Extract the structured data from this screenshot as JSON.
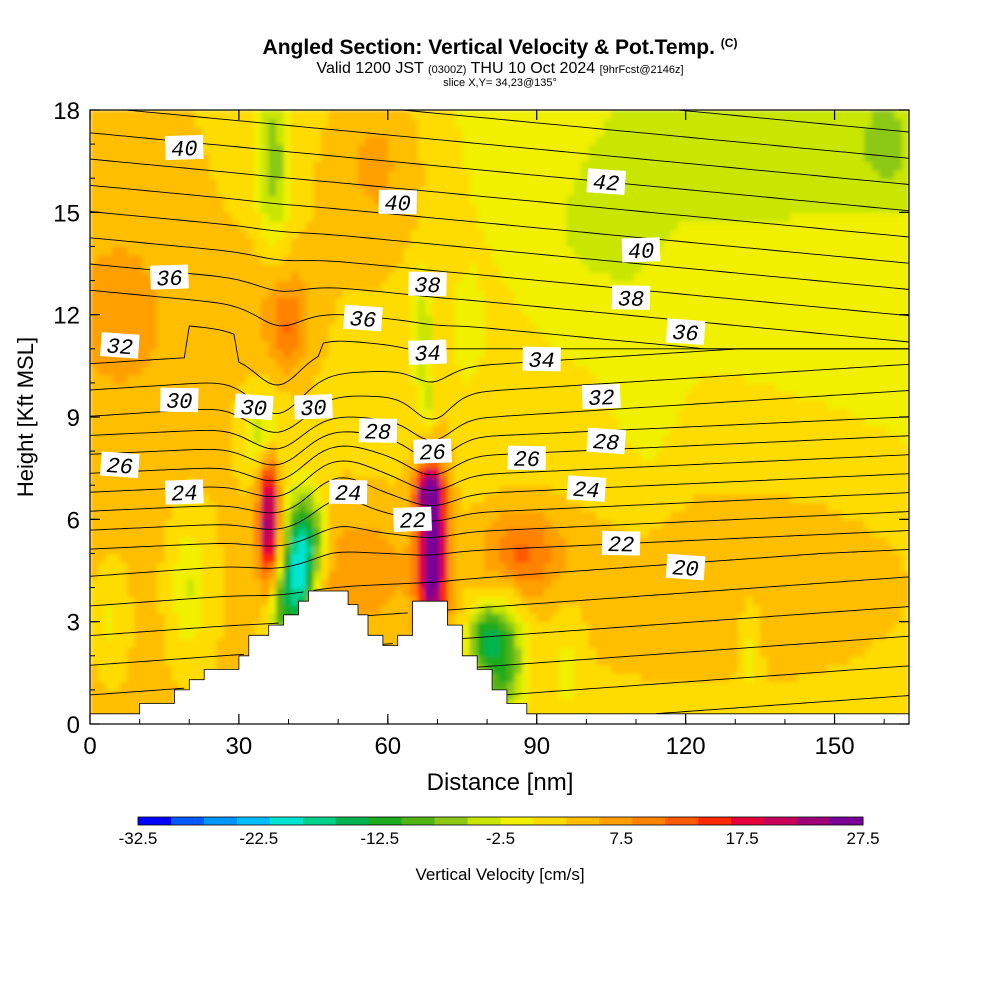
{
  "title": {
    "main": "Angled Section: Vertical Velocity & Pot.Temp.",
    "copyright": "(C)",
    "valid_prefix": "Valid 1200 JST",
    "utc": "(0300Z)",
    "valid_date": "THU 10 Oct 2024",
    "forecast": "[9hrFcst@2146z]",
    "slice": "slice X,Y= 34,23@135°"
  },
  "chart_data": {
    "type": "heatmap",
    "xlabel": "Distance [nm]",
    "ylabel": "Height [Kft MSL]",
    "xlim": [
      0,
      165
    ],
    "ylim": [
      0,
      18
    ],
    "x_ticks": [
      "0",
      "30",
      "60",
      "90",
      "120",
      "150"
    ],
    "x_tick_values": [
      0,
      30,
      60,
      90,
      120,
      150
    ],
    "y_ticks": [
      "0",
      "3",
      "6",
      "9",
      "12",
      "15",
      "18"
    ],
    "y_tick_values": [
      0,
      3,
      6,
      9,
      12,
      15,
      18
    ],
    "colorbar": {
      "label": "Vertical Velocity [cm/s]",
      "tick_labels": [
        "-32.5",
        "-22.5",
        "-12.5",
        "-2.5",
        "7.5",
        "17.5",
        "27.5"
      ],
      "tick_values": [
        -32.5,
        -22.5,
        -12.5,
        -2.5,
        7.5,
        17.5,
        27.5
      ],
      "colors": [
        "#0000ff",
        "#005aff",
        "#0096ff",
        "#00beff",
        "#00e6d2",
        "#00d28c",
        "#00b450",
        "#1eaa1e",
        "#50b414",
        "#8cc814",
        "#c8e600",
        "#f0f000",
        "#ffdc00",
        "#ffbe00",
        "#ffa000",
        "#ff8200",
        "#ff5a00",
        "#ff2800",
        "#e6003c",
        "#c8005a",
        "#a00078",
        "#780096"
      ]
    },
    "terrain_nm_kft": [
      [
        0,
        0.3
      ],
      [
        10,
        0.3
      ],
      [
        10,
        0.6
      ],
      [
        17,
        0.6
      ],
      [
        17,
        1.0
      ],
      [
        20,
        1.0
      ],
      [
        20,
        1.3
      ],
      [
        23,
        1.3
      ],
      [
        23,
        1.6
      ],
      [
        30,
        1.6
      ],
      [
        30,
        2.0
      ],
      [
        32,
        2.0
      ],
      [
        32,
        2.6
      ],
      [
        36,
        2.6
      ],
      [
        36,
        2.9
      ],
      [
        39,
        2.9
      ],
      [
        39,
        3.2
      ],
      [
        42,
        3.2
      ],
      [
        42,
        3.6
      ],
      [
        44,
        3.6
      ],
      [
        44,
        3.9
      ],
      [
        52,
        3.9
      ],
      [
        52,
        3.5
      ],
      [
        54,
        3.5
      ],
      [
        54,
        3.2
      ],
      [
        56,
        3.2
      ],
      [
        56,
        2.6
      ],
      [
        59,
        2.6
      ],
      [
        59,
        2.3
      ],
      [
        62,
        2.3
      ],
      [
        62,
        2.6
      ],
      [
        65,
        2.6
      ],
      [
        65,
        3.6
      ],
      [
        72,
        3.6
      ],
      [
        72,
        2.9
      ],
      [
        75,
        2.9
      ],
      [
        75,
        2.0
      ],
      [
        78,
        2.0
      ],
      [
        78,
        1.6
      ],
      [
        81,
        1.6
      ],
      [
        81,
        1.0
      ],
      [
        84,
        1.0
      ],
      [
        84,
        0.6
      ],
      [
        88,
        0.6
      ],
      [
        88,
        0.3
      ],
      [
        165,
        0.3
      ]
    ],
    "velocity_cells": [
      {
        "x": 36,
        "z": 6.0,
        "sx": 1.4,
        "sz": 1.4,
        "v": 22
      },
      {
        "x": 35,
        "z": 8.5,
        "sx": 2.5,
        "sz": 0.8,
        "v": -8
      },
      {
        "x": 42,
        "z": 4.5,
        "sx": 2.2,
        "sz": 1.4,
        "v": -24
      },
      {
        "x": 38,
        "z": 3.5,
        "sx": 2.0,
        "sz": 0.8,
        "v": -10
      },
      {
        "x": 45,
        "z": 5.5,
        "sx": 2.0,
        "sz": 0.9,
        "v": -10
      },
      {
        "x": 69,
        "z": 5.0,
        "sx": 2.0,
        "sz": 1.7,
        "v": 28
      },
      {
        "x": 68,
        "z": 6.8,
        "sx": 2.0,
        "sz": 0.5,
        "v": 14
      },
      {
        "x": 67,
        "z": 11.5,
        "sx": 1.5,
        "sz": 1.2,
        "v": -7
      },
      {
        "x": 68,
        "z": 9.3,
        "sx": 1.2,
        "sz": 0.6,
        "v": -5
      },
      {
        "x": 83,
        "z": 2.0,
        "sx": 3.0,
        "sz": 1.2,
        "v": -15
      },
      {
        "x": 79,
        "z": 2.6,
        "sx": 2.0,
        "sz": 0.6,
        "v": -11
      },
      {
        "x": 87,
        "z": 5.0,
        "sx": 5.5,
        "sz": 0.9,
        "v": 9
      },
      {
        "x": 20,
        "z": 4.0,
        "sx": 2.8,
        "sz": 1.4,
        "v": -6
      },
      {
        "x": 4,
        "z": 3.0,
        "sx": 2.5,
        "sz": 1.2,
        "v": -4
      },
      {
        "x": 96,
        "z": 1.8,
        "sx": 2.5,
        "sz": 1.2,
        "v": -3
      },
      {
        "x": 133,
        "z": 2.3,
        "sx": 1.6,
        "sz": 1.3,
        "v": -4
      },
      {
        "x": 54,
        "z": 4.5,
        "sx": 9,
        "sz": 1.3,
        "v": 5
      },
      {
        "x": 58,
        "z": 16.5,
        "sx": 7,
        "sz": 2.0,
        "v": 5
      },
      {
        "x": 37,
        "z": 16.5,
        "sx": 2.4,
        "sz": 2.0,
        "v": -9
      },
      {
        "x": 38,
        "z": 12.5,
        "sx": 5,
        "sz": 1.2,
        "v": 4
      },
      {
        "x": 40,
        "z": 11.5,
        "sx": 2.5,
        "sz": 0.8,
        "v": 6
      },
      {
        "x": 7,
        "z": 12,
        "sx": 8,
        "sz": 2.0,
        "v": 3
      },
      {
        "x": 120,
        "z": 16,
        "sx": 28,
        "sz": 3,
        "v": -2
      },
      {
        "x": 160,
        "z": 17,
        "sx": 3,
        "sz": 0.8,
        "v": -5
      },
      {
        "x": 140,
        "z": 4,
        "sx": 35,
        "sz": 2.8,
        "v": 5
      },
      {
        "x": 76,
        "z": 11.5,
        "sx": 2,
        "sz": 1.0,
        "v": -4
      },
      {
        "x": 112,
        "z": 9,
        "sx": 5,
        "sz": 2.5,
        "v": -2
      },
      {
        "x": 100,
        "z": 13.5,
        "sx": 10,
        "sz": 2,
        "v": -2
      }
    ],
    "isentrope_levels": [
      20,
      22,
      24,
      26,
      28,
      30,
      32,
      34,
      36,
      38,
      40,
      42
    ],
    "isentrope_labels": [
      {
        "text": "40",
        "x": 19,
        "z": 16.9
      },
      {
        "text": "40",
        "x": 62,
        "z": 15.3
      },
      {
        "text": "42",
        "x": 104,
        "z": 15.9
      },
      {
        "text": "40",
        "x": 111,
        "z": 13.9
      },
      {
        "text": "38",
        "x": 109,
        "z": 12.5
      },
      {
        "text": "36",
        "x": 120,
        "z": 11.5
      },
      {
        "text": "36",
        "x": 16,
        "z": 13.1
      },
      {
        "text": "38",
        "x": 68,
        "z": 12.9
      },
      {
        "text": "36",
        "x": 55,
        "z": 11.9
      },
      {
        "text": "34",
        "x": 68,
        "z": 10.9
      },
      {
        "text": "34",
        "x": 91,
        "z": 10.7
      },
      {
        "text": "32",
        "x": 6,
        "z": 11.1
      },
      {
        "text": "32",
        "x": 103,
        "z": 9.6
      },
      {
        "text": "30",
        "x": 18,
        "z": 9.5
      },
      {
        "text": "30",
        "x": 33,
        "z": 9.3
      },
      {
        "text": "30",
        "x": 45,
        "z": 9.3
      },
      {
        "text": "28",
        "x": 58,
        "z": 8.6
      },
      {
        "text": "28",
        "x": 104,
        "z": 8.3
      },
      {
        "text": "26",
        "x": 69,
        "z": 8.0
      },
      {
        "text": "26",
        "x": 88,
        "z": 7.8
      },
      {
        "text": "26",
        "x": 6,
        "z": 7.6
      },
      {
        "text": "24",
        "x": 19,
        "z": 6.8
      },
      {
        "text": "24",
        "x": 52,
        "z": 6.8
      },
      {
        "text": "24",
        "x": 100,
        "z": 6.9
      },
      {
        "text": "22",
        "x": 65,
        "z": 6.0
      },
      {
        "text": "22",
        "x": 107,
        "z": 5.3
      },
      {
        "text": "20",
        "x": 120,
        "z": 4.6
      }
    ]
  }
}
